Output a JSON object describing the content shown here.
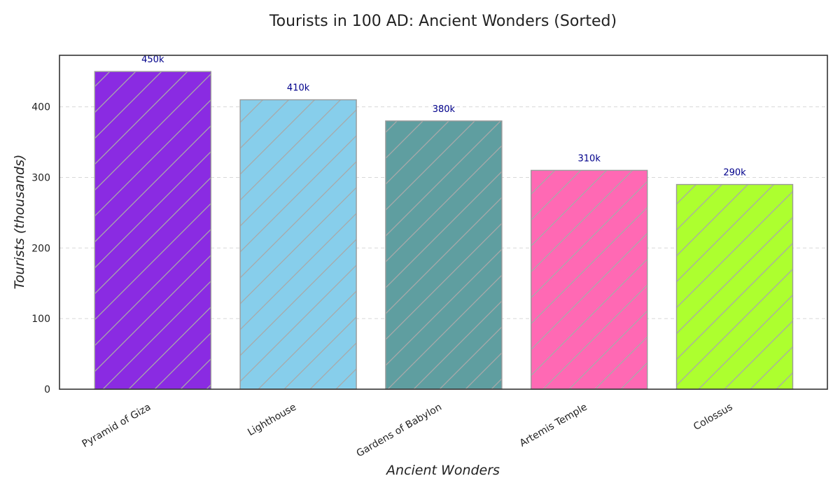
{
  "chart_data": {
    "type": "bar",
    "title": "Tourists in 100 AD: Ancient Wonders (Sorted)",
    "xlabel": "Ancient Wonders",
    "ylabel": "Tourists (thousands)",
    "categories": [
      "Pyramid of Giza",
      "Lighthouse",
      "Gardens of Babylon",
      "Artemis Temple",
      "Colossus"
    ],
    "values": [
      450,
      410,
      380,
      310,
      290
    ],
    "data_labels": [
      "450k",
      "410k",
      "380k",
      "310k",
      "290k"
    ],
    "colors": [
      "#8a2be2",
      "#87ceeb",
      "#5f9ea0",
      "#ff69b4",
      "#adff2f"
    ],
    "hatch_color": "#a9a9a9",
    "edge_color": "#9a9a9a",
    "data_label_color": "#00008b",
    "ylim": [
      0,
      473
    ],
    "yticks": [
      0,
      100,
      200,
      300,
      400
    ],
    "grid": true,
    "grid_axis": "y",
    "hatch": "diagonal"
  }
}
